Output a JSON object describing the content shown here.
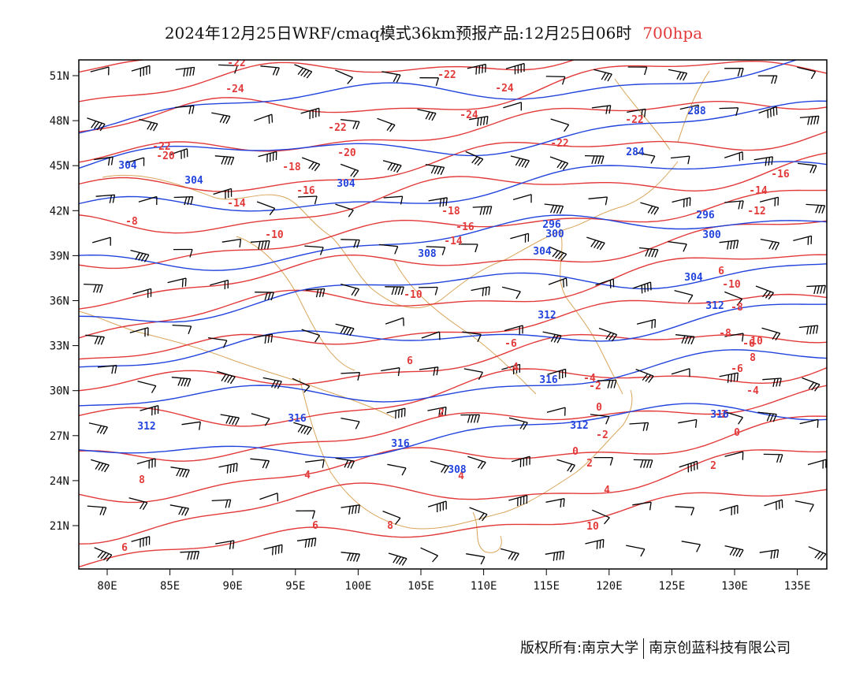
{
  "title": {
    "main": "2024年12月25日WRF/cmaq模式36km预报产品:12月25日06时",
    "level": "700hpa"
  },
  "map": {
    "lon_labels": [
      "80E",
      "85E",
      "90E",
      "95E",
      "100E",
      "105E",
      "110E",
      "115E",
      "120E",
      "125E",
      "130E",
      "135E"
    ],
    "lat_labels": [
      "51N",
      "48N",
      "45N",
      "42N",
      "39N",
      "36N",
      "33N",
      "30N",
      "27N",
      "24N",
      "21N"
    ],
    "temperature_labels": [
      "-22",
      "-24",
      "-22",
      "-22",
      "-24",
      "-22",
      "-24",
      "-22",
      "-22",
      "-20",
      "-20",
      "-18",
      "-16",
      "-16",
      "-14",
      "-14",
      "-12",
      "-10",
      "-18",
      "-16",
      "-14",
      "-10",
      "-8",
      "-6",
      "-4",
      "-2",
      "0",
      "2",
      "4",
      "6",
      "8",
      "10",
      "-8",
      "-6",
      "-4",
      "-2",
      "0",
      "2",
      "4",
      "6",
      "-10",
      "-8",
      "-6",
      "-4",
      "-2",
      "0",
      "2",
      "4",
      "6",
      "8",
      "10",
      "6",
      "8"
    ],
    "height_labels": [
      "304",
      "304",
      "304",
      "288",
      "284",
      "296",
      "296",
      "300",
      "300",
      "304",
      "308",
      "304",
      "312",
      "312",
      "316",
      "316",
      "312",
      "312",
      "316",
      "316",
      "308"
    ],
    "colors": {
      "temperature": "#e23a3a",
      "height": "#2244dd",
      "border": "#d9a55a",
      "wind": "#000000"
    }
  },
  "footer": {
    "left": "版权所有:南京大学",
    "right": "南京创蓝科技有限公司"
  }
}
